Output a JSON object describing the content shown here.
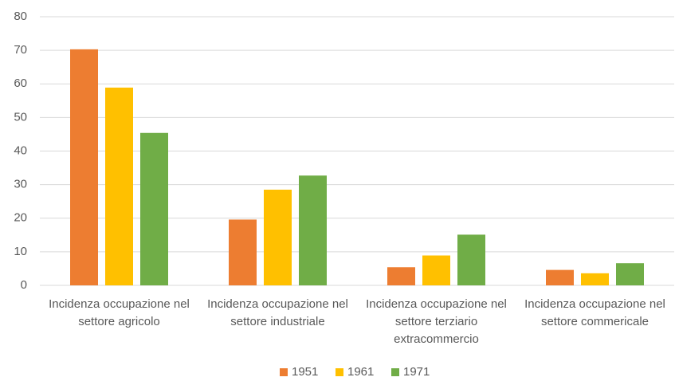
{
  "chart_data": {
    "type": "bar",
    "categories": [
      "Incidenza occupazione nel settore agricolo",
      "Incidenza occupazione nel settore industriale",
      "Incidenza occupazione nel settore terziario extracommercio",
      "Incidenza occupazione nel settore commericale"
    ],
    "series": [
      {
        "name": "1951",
        "color": "#ed7d31",
        "values": [
          70.3,
          19.6,
          5.4,
          4.6
        ]
      },
      {
        "name": "1961",
        "color": "#ffc000",
        "values": [
          58.9,
          28.5,
          8.9,
          3.6
        ]
      },
      {
        "name": "1971",
        "color": "#70ad47",
        "values": [
          45.4,
          32.7,
          15.1,
          6.6
        ]
      }
    ],
    "ylim": [
      0,
      80
    ],
    "yticks": [
      0,
      10,
      20,
      30,
      40,
      50,
      60,
      70,
      80
    ],
    "grid": true,
    "legend": "bottom"
  }
}
